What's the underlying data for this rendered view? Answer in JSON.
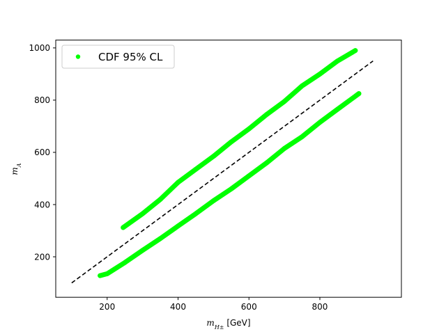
{
  "chart_data": {
    "type": "scatter",
    "title": "",
    "xlabel": {
      "main": "m",
      "sub": "H±",
      "unit": " [GeV]"
    },
    "ylabel": {
      "main": "m",
      "sub": "A"
    },
    "xlim": [
      55,
      1030
    ],
    "ylim": [
      45,
      1030
    ],
    "xticks": [
      200,
      400,
      600,
      800
    ],
    "yticks": [
      200,
      400,
      600,
      800,
      1000
    ],
    "grid": false,
    "legend_position": "upper-left",
    "series": [
      {
        "name": "CDF 95% CL",
        "kind": "band",
        "color": "#00ff00",
        "segments": [
          {
            "x": [
              245,
              300,
              350,
              400,
              450,
              500,
              550,
              600,
              650,
              700,
              750,
              800,
              850,
              900
            ],
            "y": [
              312,
              365,
              420,
              485,
              535,
              585,
              640,
              690,
              745,
              795,
              855,
              900,
              950,
              990
            ]
          },
          {
            "x": [
              180,
              200,
              250,
              300,
              350,
              400,
              450,
              500,
              550,
              600,
              650,
              700,
              750,
              800,
              850,
              910
            ],
            "y": [
              128,
              135,
              178,
              225,
              270,
              318,
              365,
              415,
              460,
              510,
              560,
              615,
              660,
              715,
              765,
              825
            ]
          }
        ]
      },
      {
        "name": "",
        "kind": "reference-line",
        "style": "dashed",
        "color": "#000000",
        "x": [
          100,
          950
        ],
        "y": [
          100,
          950
        ]
      }
    ]
  }
}
